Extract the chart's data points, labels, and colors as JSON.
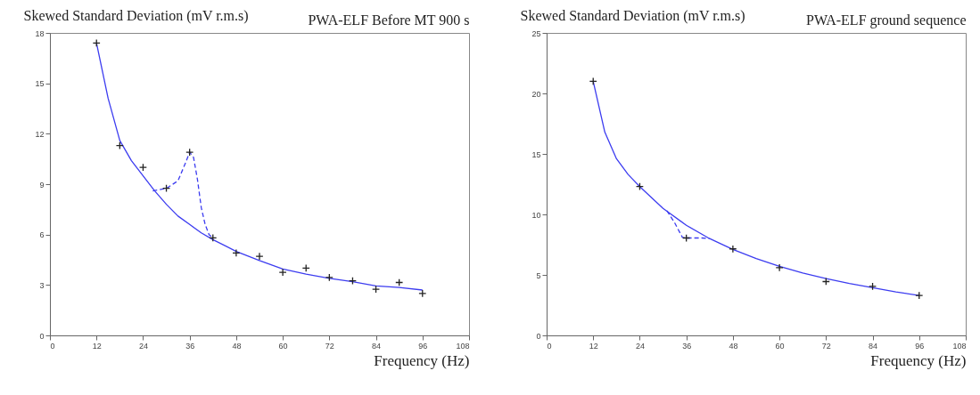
{
  "chart_data": [
    {
      "type": "line",
      "title": "PWA-ELF Before MT 900 s",
      "ylabel": "Skewed Standard Deviation (mV r.m.s)",
      "xlabel": "Frequency (Hz)",
      "xlim": [
        0,
        108
      ],
      "xticks": [
        0,
        12,
        24,
        36,
        48,
        60,
        72,
        84,
        96,
        108
      ],
      "ylim": [
        0,
        18
      ],
      "yticks": [
        0,
        3,
        6,
        9,
        12,
        15,
        18
      ],
      "grid": false,
      "series": [
        {
          "color": "#3c3cf0",
          "line_style": "solid",
          "x": [
            12,
            15,
            18,
            21,
            24,
            27,
            30,
            33,
            36,
            39,
            42,
            48,
            54,
            60,
            66,
            72,
            78,
            84,
            90,
            96
          ],
          "values": [
            17.4,
            14.1,
            11.6,
            10.4,
            9.5,
            8.6,
            7.8,
            7.1,
            6.6,
            6.1,
            5.7,
            5.0,
            4.45,
            3.95,
            3.65,
            3.4,
            3.2,
            2.95,
            2.85,
            2.7
          ]
        },
        {
          "color": "#3c3cf0",
          "line_style": "dashed",
          "x": [
            26.5,
            30,
            33,
            35,
            36,
            37,
            38,
            39,
            40,
            41,
            42
          ],
          "values": [
            8.6,
            8.75,
            9.2,
            10.3,
            10.9,
            10.6,
            9.3,
            7.6,
            6.6,
            6.0,
            5.8
          ]
        },
        {
          "type": "scatter",
          "color": "#222222",
          "marker": "cross",
          "x": [
            12,
            18,
            24,
            30,
            36,
            42,
            48,
            54,
            60,
            66,
            72,
            78,
            84,
            90,
            96
          ],
          "values": [
            17.4,
            11.3,
            10.0,
            8.75,
            10.9,
            5.8,
            4.9,
            4.7,
            3.75,
            4.0,
            3.45,
            3.25,
            2.75,
            3.15,
            2.5
          ]
        }
      ]
    },
    {
      "type": "line",
      "title": "PWA-ELF ground sequence",
      "ylabel": "Skewed Standard Deviation (mV r.m.s)",
      "xlabel": "Frequency (Hz)",
      "xlim": [
        0,
        108
      ],
      "xticks": [
        0,
        12,
        24,
        36,
        48,
        60,
        72,
        84,
        96,
        108
      ],
      "ylim": [
        0,
        25
      ],
      "yticks": [
        0,
        5,
        10,
        15,
        20,
        25
      ],
      "grid": false,
      "series": [
        {
          "color": "#3c3cf0",
          "line_style": "solid",
          "x": [
            12,
            15,
            18,
            21,
            24,
            30,
            36,
            42,
            48,
            54,
            60,
            66,
            72,
            78,
            84,
            90,
            96
          ],
          "values": [
            21.0,
            16.8,
            14.6,
            13.3,
            12.3,
            10.5,
            9.1,
            8.0,
            7.1,
            6.35,
            5.7,
            5.15,
            4.7,
            4.3,
            3.95,
            3.6,
            3.3
          ]
        },
        {
          "color": "#3c3cf0",
          "line_style": "dashed",
          "x": [
            31,
            33,
            35,
            36,
            38,
            40,
            42
          ],
          "values": [
            10.3,
            9.3,
            8.1,
            8.05,
            8.05,
            8.05,
            8.0
          ]
        },
        {
          "type": "scatter",
          "color": "#222222",
          "marker": "cross",
          "x": [
            12,
            24,
            36,
            48,
            60,
            72,
            84,
            96
          ],
          "values": [
            21.0,
            12.3,
            8.05,
            7.15,
            5.6,
            4.45,
            4.05,
            3.3
          ]
        }
      ]
    }
  ]
}
